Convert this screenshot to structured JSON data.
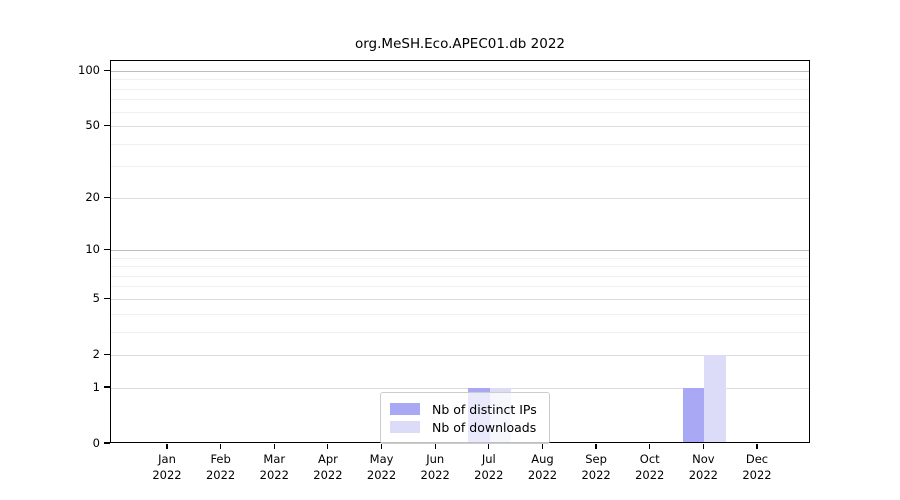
{
  "title": "org.MeSH.Eco.APEC01.db 2022",
  "chart_data": {
    "type": "bar",
    "title": "org.MeSH.Eco.APEC01.db 2022",
    "categories": [
      "Jan",
      "Feb",
      "Mar",
      "Apr",
      "May",
      "Jun",
      "Jul",
      "Aug",
      "Sep",
      "Oct",
      "Nov",
      "Dec"
    ],
    "year_label": "2022",
    "series": [
      {
        "name": "Nb of distinct IPs",
        "color": "#a8a8f4",
        "values": [
          0,
          0,
          0,
          0,
          0,
          0,
          1,
          0,
          0,
          0,
          1,
          0
        ]
      },
      {
        "name": "Nb of downloads",
        "color": "#dcdcf8",
        "values": [
          0,
          0,
          0,
          0,
          0,
          0,
          1,
          0,
          0,
          0,
          2,
          0
        ]
      }
    ],
    "xlabel": "",
    "ylabel": "",
    "yscale": "log1p",
    "ylim": [
      0,
      114
    ],
    "yticks": [
      100,
      50,
      20,
      10,
      5,
      2,
      1,
      0
    ],
    "gridlines": {
      "strong": [
        100,
        10
      ],
      "medium": [
        50,
        20,
        5,
        2,
        1
      ],
      "faint": [
        90,
        80,
        70,
        60,
        40,
        30,
        9,
        8,
        7,
        6,
        4,
        3
      ]
    },
    "grid_colors": {
      "strong": "#bdbdbd",
      "medium": "#dcdcdc",
      "faint": "#efefef"
    },
    "legend_position": "lower center"
  }
}
